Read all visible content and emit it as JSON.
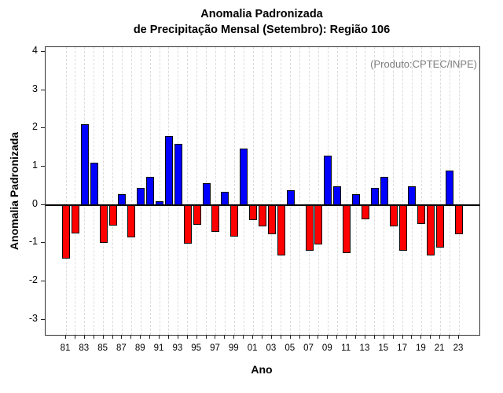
{
  "title": {
    "line1": "Anomalia Padronizada",
    "line2": "de Precipitação Mensal (Setembro): Região 106"
  },
  "annotation": {
    "text": "(Produto:CPTEC/INPE)",
    "color": "#7d7d7d"
  },
  "axes": {
    "xlabel": "Ano",
    "ylabel": "Anomalia Padronizada"
  },
  "chart_data": {
    "type": "bar",
    "title": "Anomalia Padronizada de Precipitação Mensal (Setembro): Região 106",
    "xlabel": "Ano",
    "ylabel": "Anomalia Padronizada",
    "annotation": "(Produto:CPTEC/INPE)",
    "categories": [
      "81",
      "82",
      "83",
      "84",
      "85",
      "86",
      "87",
      "88",
      "89",
      "90",
      "91",
      "92",
      "93",
      "94",
      "95",
      "96",
      "97",
      "98",
      "99",
      "00",
      "01",
      "02",
      "03",
      "04",
      "05",
      "06",
      "07",
      "08",
      "09",
      "10",
      "11",
      "12",
      "13",
      "14",
      "15",
      "16",
      "17",
      "18",
      "19",
      "20",
      "21",
      "22",
      "23"
    ],
    "values": [
      -1.4,
      -0.75,
      2.1,
      1.1,
      -1.0,
      -0.55,
      0.28,
      -0.85,
      0.44,
      0.72,
      0.1,
      1.8,
      1.6,
      -1.02,
      -0.53,
      0.56,
      -0.7,
      0.33,
      -0.84,
      1.46,
      -0.4,
      -0.57,
      -0.76,
      -1.32,
      0.39,
      0.02,
      -1.2,
      -1.04,
      1.28,
      0.49,
      -1.26,
      0.28,
      -0.38,
      0.44,
      0.73,
      -0.56,
      -1.2,
      0.49,
      -0.51,
      -1.32,
      -1.11,
      0.9,
      -0.78
    ],
    "x_labeled_ticks": [
      "81",
      "83",
      "85",
      "87",
      "89",
      "91",
      "93",
      "95",
      "97",
      "99",
      "01",
      "03",
      "05",
      "07",
      "09",
      "11",
      "13",
      "15",
      "17",
      "19",
      "21",
      "23"
    ],
    "yticks": [
      -3,
      -2,
      -1,
      0,
      1,
      2,
      3,
      4
    ],
    "ylim": [
      -3.4,
      4.12
    ],
    "positive_color": "#0000ff",
    "negative_color": "#ff0000",
    "bar_border_color": "#0a0a0a",
    "grid": "vertical-dashed",
    "gridline_color": "#dcdcdc",
    "zero_line": true,
    "legend_position": "none"
  }
}
